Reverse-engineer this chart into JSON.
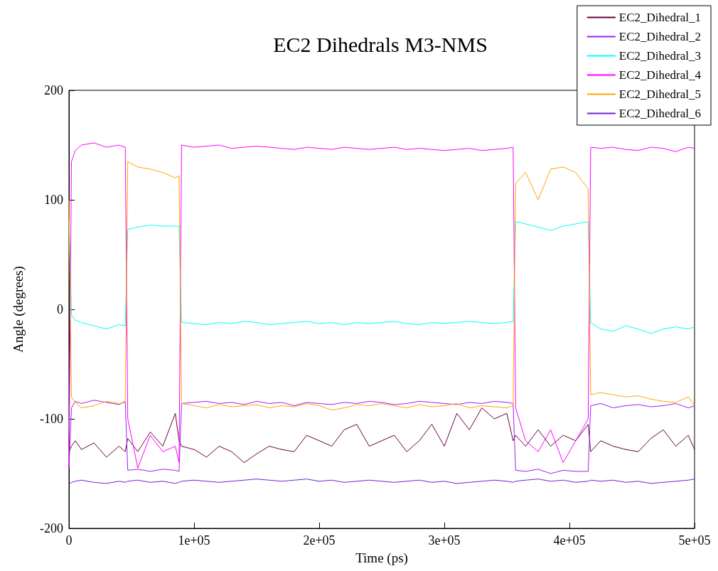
{
  "chart_data": {
    "type": "line",
    "title": "EC2 Dihedrals M3-NMS",
    "xlabel": "Time (ps)",
    "ylabel": "Angle (degrees)",
    "x": [
      0,
      2000,
      5000,
      10000,
      20000,
      30000,
      40000,
      45000,
      47000,
      55000,
      65000,
      75000,
      85000,
      88000,
      90000,
      100000,
      110000,
      120000,
      130000,
      140000,
      150000,
      160000,
      170000,
      180000,
      190000,
      200000,
      210000,
      220000,
      230000,
      240000,
      250000,
      260000,
      270000,
      280000,
      290000,
      300000,
      310000,
      320000,
      330000,
      340000,
      350000,
      355000,
      357000,
      365000,
      375000,
      385000,
      395000,
      405000,
      415000,
      417000,
      425000,
      435000,
      445000,
      455000,
      465000,
      475000,
      485000,
      495000,
      500000
    ],
    "xlim": [
      0,
      500000
    ],
    "xticks": [
      0,
      {
        "value": 100000,
        "label": "1e+05"
      },
      {
        "value": 200000,
        "label": "2e+05"
      },
      {
        "value": 300000,
        "label": "3e+05"
      },
      {
        "value": 400000,
        "label": "4e+05"
      },
      {
        "value": 500000,
        "label": "5e+05"
      }
    ],
    "ylim": [
      -200,
      200
    ],
    "yticks": [
      -200,
      -100,
      0,
      100,
      200
    ],
    "grid": false,
    "legend": "top right",
    "marker": "none",
    "line_style": "solid",
    "series": [
      {
        "name": "EC2_Dihedral_1",
        "color": "#67003f",
        "values": [
          -130,
          -125,
          -120,
          -128,
          -122,
          -135,
          -125,
          -130,
          -118,
          -130,
          -112,
          -125,
          -95,
          -120,
          -125,
          -128,
          -135,
          -125,
          -130,
          -140,
          -132,
          -125,
          -128,
          -130,
          -115,
          -120,
          -125,
          -110,
          -105,
          -125,
          -120,
          -115,
          -130,
          -120,
          -105,
          -125,
          -95,
          -110,
          -90,
          -100,
          -95,
          -120,
          -115,
          -125,
          -110,
          -125,
          -115,
          -120,
          -105,
          -130,
          -120,
          -125,
          -128,
          -130,
          -118,
          -110,
          -125,
          -115,
          -128
        ]
      },
      {
        "name": "EC2_Dihedral_2",
        "color": "#a020f0",
        "values": [
          -145,
          -90,
          -84,
          -86,
          -83,
          -85,
          -87,
          -84,
          -147,
          -146,
          -148,
          -146,
          -147,
          -148,
          -86,
          -85,
          -84,
          -86,
          -85,
          -87,
          -84,
          -86,
          -85,
          -88,
          -85,
          -86,
          -87,
          -85,
          -86,
          -84,
          -85,
          -87,
          -86,
          -84,
          -85,
          -86,
          -87,
          -85,
          -86,
          -84,
          -85,
          -86,
          -147,
          -148,
          -146,
          -150,
          -147,
          -148,
          -148,
          -88,
          -86,
          -90,
          -88,
          -87,
          -89,
          -88,
          -86,
          -90,
          -88
        ]
      },
      {
        "name": "EC2_Dihedral_3",
        "color": "#00ffff",
        "values": [
          80,
          -5,
          -10,
          -12,
          -15,
          -18,
          -14,
          -15,
          73,
          75,
          77,
          76,
          76,
          76,
          -12,
          -13,
          -14,
          -12,
          -13,
          -11,
          -12,
          -14,
          -13,
          -12,
          -11,
          -13,
          -12,
          -14,
          -12,
          -13,
          -12,
          -11,
          -13,
          -14,
          -12,
          -13,
          -12,
          -11,
          -12,
          -13,
          -12,
          -11,
          80,
          78,
          75,
          72,
          76,
          78,
          80,
          -12,
          -18,
          -20,
          -15,
          -18,
          -22,
          -18,
          -16,
          -18,
          -16
        ]
      },
      {
        "name": "EC2_Dihedral_4",
        "color": "#ff00ff",
        "values": [
          -145,
          135,
          145,
          150,
          152,
          148,
          150,
          148,
          -100,
          -145,
          -115,
          -130,
          -125,
          -140,
          150,
          148,
          149,
          150,
          147,
          148,
          149,
          148,
          147,
          146,
          148,
          147,
          146,
          148,
          147,
          146,
          147,
          148,
          146,
          147,
          146,
          145,
          146,
          147,
          145,
          146,
          147,
          148,
          -90,
          -120,
          -130,
          -110,
          -140,
          -120,
          -100,
          148,
          147,
          148,
          146,
          145,
          148,
          147,
          144,
          148,
          147
        ]
      },
      {
        "name": "EC2_Dihedral_5",
        "color": "#ffa500",
        "values": [
          100,
          -80,
          -85,
          -90,
          -88,
          -84,
          -86,
          -85,
          135,
          130,
          128,
          125,
          120,
          122,
          -86,
          -88,
          -90,
          -87,
          -89,
          -88,
          -87,
          -90,
          -88,
          -89,
          -86,
          -88,
          -92,
          -90,
          -87,
          -88,
          -86,
          -88,
          -90,
          -87,
          -89,
          -88,
          -86,
          -90,
          -88,
          -89,
          -90,
          -88,
          115,
          125,
          100,
          128,
          130,
          125,
          110,
          -78,
          -76,
          -78,
          -80,
          -79,
          -82,
          -84,
          -85,
          -80,
          -88
        ]
      },
      {
        "name": "EC2_Dihedral_6",
        "color": "#7020d0",
        "values": [
          -160,
          -158,
          -157,
          -156,
          -158,
          -159,
          -157,
          -158,
          -157,
          -156,
          -158,
          -157,
          -159,
          -158,
          -157,
          -156,
          -157,
          -158,
          -157,
          -156,
          -155,
          -156,
          -157,
          -156,
          -155,
          -157,
          -156,
          -158,
          -157,
          -156,
          -157,
          -158,
          -157,
          -156,
          -158,
          -157,
          -159,
          -158,
          -157,
          -156,
          -157,
          -158,
          -157,
          -156,
          -155,
          -157,
          -156,
          -158,
          -157,
          -156,
          -157,
          -156,
          -158,
          -157,
          -159,
          -158,
          -157,
          -156,
          -155
        ]
      }
    ]
  }
}
